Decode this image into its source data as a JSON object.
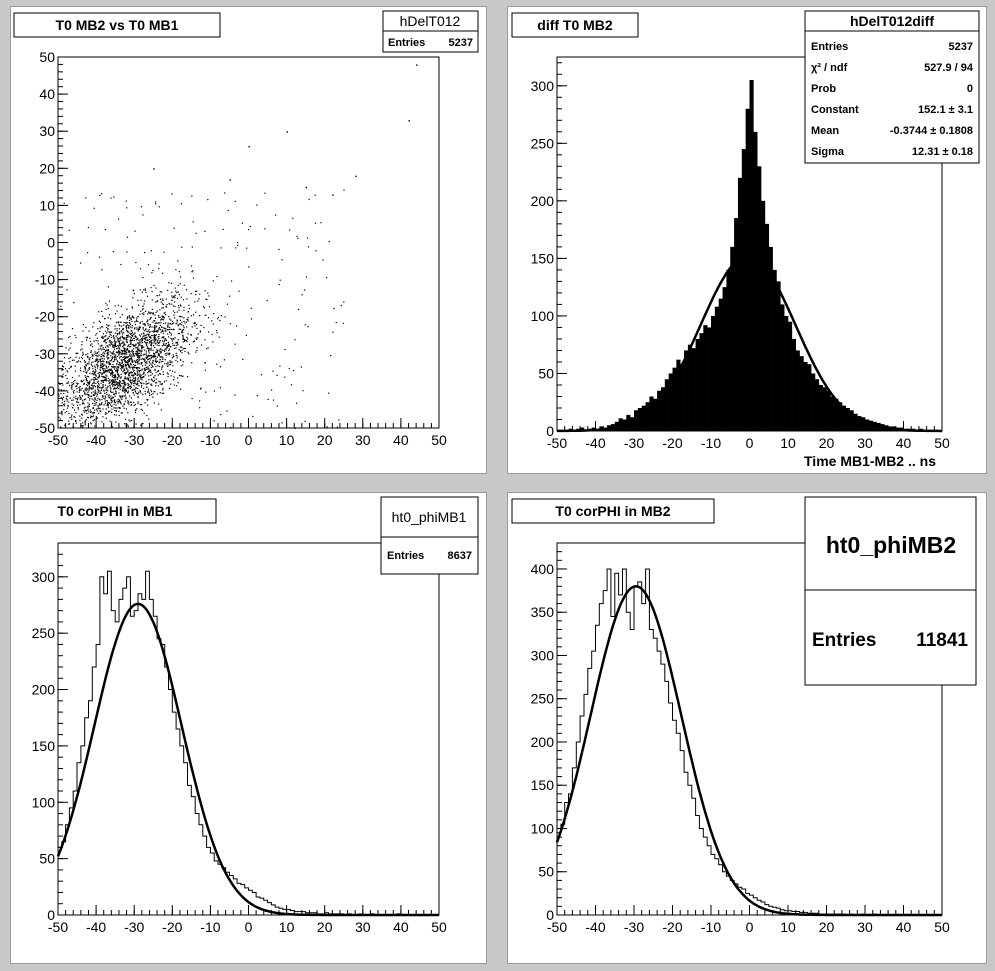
{
  "pads": [
    {
      "title": "T0 MB2 vs T0 MB1",
      "stats": {
        "name": "hDelT012",
        "rows": [
          {
            "label": "Entries",
            "value": "5237"
          }
        ]
      }
    },
    {
      "title": "diff T0 MB2",
      "xlabel": "Time MB1-MB2  ..  ns",
      "stats": {
        "name": "hDelT012diff",
        "rows": [
          {
            "label": "Entries",
            "value": "5237"
          },
          {
            "label": "χ² / ndf",
            "value": "527.9 / 94"
          },
          {
            "label": "Prob",
            "value": "0"
          },
          {
            "label": "Constant",
            "value": "152.1 ± 3.1"
          },
          {
            "label": "Mean",
            "value": "-0.3744 ± 0.1808"
          },
          {
            "label": "Sigma",
            "value": "12.31 ± 0.18"
          }
        ]
      }
    },
    {
      "title": "T0 corPHI in MB1",
      "stats": {
        "name": "ht0_phiMB1",
        "rows": [
          {
            "label": "Entries",
            "value": "8637"
          }
        ]
      }
    },
    {
      "title": "T0 corPHI in MB2",
      "stats": {
        "name": "ht0_phiMB2",
        "rows": [
          {
            "label": "Entries",
            "value": "11841"
          }
        ]
      }
    }
  ],
  "chart_data": [
    {
      "type": "scatter",
      "title": "T0 MB2 vs T0 MB1",
      "xlim": [
        -50,
        50
      ],
      "ylim": [
        -50,
        50
      ],
      "xticks": [
        -50,
        -40,
        -30,
        -20,
        -10,
        0,
        10,
        20,
        30,
        40,
        50
      ],
      "yticks": [
        -50,
        -40,
        -30,
        -20,
        -10,
        0,
        10,
        20,
        30,
        40,
        50
      ],
      "entries": 5237,
      "density_peak": {
        "x": -33,
        "y": -33
      },
      "correlation_ridge": [
        [
          -40,
          -38
        ],
        [
          -35,
          -34
        ],
        [
          -30,
          -30
        ],
        [
          -25,
          -26
        ],
        [
          -20,
          -20
        ]
      ],
      "outlier_points": [
        [
          44,
          48
        ],
        [
          42,
          33
        ],
        [
          10,
          30
        ],
        [
          0,
          26
        ],
        [
          -5,
          17
        ],
        [
          -25,
          20
        ],
        [
          15,
          15
        ],
        [
          22,
          13
        ],
        [
          28,
          18
        ]
      ]
    },
    {
      "type": "bar",
      "title": "diff T0 MB2",
      "xlabel": "Time MB1-MB2  ..  ns",
      "xlim": [
        -50,
        50
      ],
      "ylim": [
        0,
        325
      ],
      "xticks": [
        -50,
        -40,
        -30,
        -20,
        -10,
        0,
        10,
        20,
        30,
        40,
        50
      ],
      "yticks": [
        0,
        50,
        100,
        150,
        200,
        250,
        300
      ],
      "bin_width": 1,
      "x": [
        -50,
        -49,
        -48,
        -47,
        -46,
        -45,
        -44,
        -43,
        -42,
        -41,
        -40,
        -39,
        -38,
        -37,
        -36,
        -35,
        -34,
        -33,
        -32,
        -31,
        -30,
        -29,
        -28,
        -27,
        -26,
        -25,
        -24,
        -23,
        -22,
        -21,
        -20,
        -19,
        -18,
        -17,
        -16,
        -15,
        -14,
        -13,
        -12,
        -11,
        -10,
        -9,
        -8,
        -7,
        -6,
        -5,
        -4,
        -3,
        -2,
        -1,
        0,
        1,
        2,
        3,
        4,
        5,
        6,
        7,
        8,
        9,
        10,
        11,
        12,
        13,
        14,
        15,
        16,
        17,
        18,
        19,
        20,
        21,
        22,
        23,
        24,
        25,
        26,
        27,
        28,
        29,
        30,
        31,
        32,
        33,
        34,
        35,
        36,
        37,
        38,
        39,
        40,
        41,
        42,
        43,
        44,
        45,
        46,
        47,
        48,
        49
      ],
      "values": [
        0,
        0,
        1,
        2,
        1,
        2,
        3,
        1,
        2,
        3,
        2,
        4,
        3,
        5,
        6,
        8,
        11,
        10,
        14,
        12,
        18,
        20,
        22,
        25,
        30,
        28,
        35,
        38,
        45,
        50,
        55,
        62,
        58,
        70,
        75,
        72,
        80,
        85,
        92,
        90,
        100,
        108,
        115,
        125,
        140,
        160,
        185,
        220,
        245,
        280,
        305,
        260,
        230,
        200,
        180,
        160,
        140,
        130,
        110,
        100,
        95,
        80,
        70,
        65,
        60,
        58,
        50,
        45,
        40,
        38,
        35,
        30,
        28,
        25,
        22,
        20,
        18,
        15,
        13,
        12,
        10,
        9,
        8,
        7,
        6,
        5,
        4,
        4,
        3,
        3,
        2,
        2,
        2,
        1,
        2,
        1,
        1,
        0,
        1,
        0
      ],
      "fit": {
        "type": "gaus",
        "constant": 152.1,
        "mean": -0.3744,
        "sigma": 12.31
      }
    },
    {
      "type": "line",
      "title": "T0 corPHI in MB1",
      "xlim": [
        -50,
        50
      ],
      "ylim": [
        0,
        330
      ],
      "xticks": [
        -50,
        -40,
        -30,
        -20,
        -10,
        0,
        10,
        20,
        30,
        40,
        50
      ],
      "yticks": [
        0,
        50,
        100,
        150,
        200,
        250,
        300
      ],
      "bin_width": 1,
      "x": [
        -50,
        -49,
        -48,
        -47,
        -46,
        -45,
        -44,
        -43,
        -42,
        -41,
        -40,
        -39,
        -38,
        -37,
        -36,
        -35,
        -34,
        -33,
        -32,
        -31,
        -30,
        -29,
        -28,
        -27,
        -26,
        -25,
        -24,
        -23,
        -22,
        -21,
        -20,
        -19,
        -18,
        -17,
        -16,
        -15,
        -14,
        -13,
        -12,
        -11,
        -10,
        -9,
        -8,
        -7,
        -6,
        -5,
        -4,
        -3,
        -2,
        -1,
        0,
        1,
        2,
        3,
        4,
        5,
        6,
        7,
        8,
        9,
        10,
        11,
        12,
        13,
        14,
        15,
        16,
        17,
        18,
        19,
        20,
        21,
        22,
        23,
        24,
        25,
        26,
        27,
        28,
        29,
        30,
        31,
        32,
        33,
        34,
        35,
        36,
        37,
        38,
        39,
        40,
        41,
        42,
        43,
        44,
        45,
        46,
        47,
        48,
        49
      ],
      "values": [
        60,
        65,
        80,
        95,
        110,
        135,
        150,
        175,
        190,
        220,
        240,
        300,
        285,
        305,
        270,
        260,
        280,
        290,
        300,
        265,
        270,
        285,
        280,
        305,
        280,
        265,
        245,
        240,
        220,
        200,
        180,
        165,
        150,
        135,
        115,
        105,
        90,
        80,
        70,
        60,
        55,
        48,
        45,
        42,
        38,
        35,
        32,
        28,
        27,
        24,
        22,
        20,
        16,
        15,
        13,
        11,
        9,
        7,
        6,
        5,
        5,
        4,
        3,
        3,
        3,
        2,
        2,
        2,
        1,
        1,
        2,
        1,
        1,
        1,
        1,
        0,
        1,
        0,
        0,
        1,
        0,
        0,
        1,
        0,
        0,
        0,
        0,
        0,
        0,
        1,
        0,
        0,
        0,
        0,
        0,
        0,
        0,
        0,
        0,
        0
      ],
      "fit": {
        "type": "gaus",
        "amplitude": 276,
        "mean": -29,
        "sigma": 11.5
      }
    },
    {
      "type": "line",
      "title": "T0 corPHI in MB2",
      "xlim": [
        -50,
        50
      ],
      "ylim": [
        0,
        430
      ],
      "xticks": [
        -50,
        -40,
        -30,
        -20,
        -10,
        0,
        10,
        20,
        30,
        40,
        50
      ],
      "yticks": [
        0,
        50,
        100,
        150,
        200,
        250,
        300,
        350,
        400
      ],
      "bin_width": 1,
      "x": [
        -50,
        -49,
        -48,
        -47,
        -46,
        -45,
        -44,
        -43,
        -42,
        -41,
        -40,
        -39,
        -38,
        -37,
        -36,
        -35,
        -34,
        -33,
        -32,
        -31,
        -30,
        -29,
        -28,
        -27,
        -26,
        -25,
        -24,
        -23,
        -22,
        -21,
        -20,
        -19,
        -18,
        -17,
        -16,
        -15,
        -14,
        -13,
        -12,
        -11,
        -10,
        -9,
        -8,
        -7,
        -6,
        -5,
        -4,
        -3,
        -2,
        -1,
        0,
        1,
        2,
        3,
        4,
        5,
        6,
        7,
        8,
        9,
        10,
        11,
        12,
        13,
        14,
        15,
        16,
        17,
        18,
        19,
        20,
        21,
        22,
        23,
        24,
        25,
        26,
        27,
        28,
        29,
        30,
        31,
        32,
        33,
        34,
        35,
        36,
        37,
        38,
        39,
        40,
        41,
        42,
        43,
        44,
        45,
        46,
        47,
        48,
        49
      ],
      "values": [
        95,
        105,
        130,
        140,
        170,
        200,
        230,
        255,
        285,
        305,
        335,
        360,
        375,
        400,
        345,
        395,
        370,
        400,
        350,
        330,
        380,
        385,
        360,
        400,
        330,
        320,
        305,
        290,
        270,
        245,
        225,
        210,
        190,
        165,
        150,
        135,
        115,
        100,
        90,
        80,
        70,
        65,
        58,
        50,
        45,
        40,
        36,
        32,
        30,
        25,
        23,
        20,
        17,
        15,
        12,
        10,
        9,
        8,
        6,
        5,
        5,
        4,
        4,
        3,
        3,
        2,
        2,
        2,
        1,
        1,
        1,
        1,
        1,
        1,
        1,
        0,
        1,
        0,
        0,
        1,
        0,
        0,
        1,
        0,
        0,
        0,
        0,
        0,
        0,
        0,
        0,
        0,
        0,
        0,
        0,
        0,
        0,
        0,
        0,
        0
      ],
      "fit": {
        "type": "gaus",
        "amplitude": 380,
        "mean": -29.5,
        "sigma": 11.8
      }
    }
  ]
}
